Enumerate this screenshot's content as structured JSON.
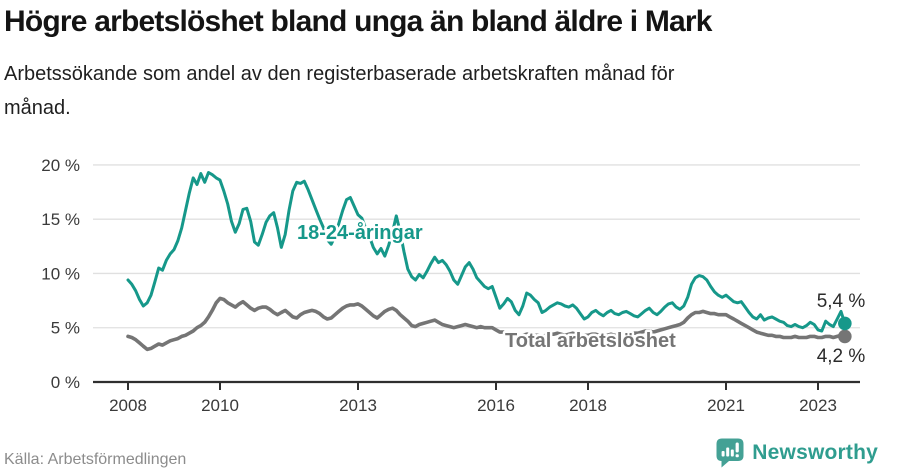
{
  "chart_data": {
    "type": "line",
    "title": "Högre arbetslöshet bland unga än bland äldre i Mark",
    "subtitle": "Arbetssökande som andel av den registerbaserade arbetskraften månad för\nmånad.",
    "source": "Källa: Arbetsförmedlingen",
    "x_unit": "month",
    "x_start": 2008.0,
    "x_end": 2023.583,
    "ylim": [
      0,
      21
    ],
    "grid": "horizontal",
    "legend_position": "inline-labels",
    "y_ticks": [
      {
        "value": 0,
        "label": "0 %"
      },
      {
        "value": 5,
        "label": "5 %"
      },
      {
        "value": 10,
        "label": "10 %"
      },
      {
        "value": 15,
        "label": "15 %"
      },
      {
        "value": 20,
        "label": "20 %"
      }
    ],
    "x_ticks": [
      {
        "value": 2008,
        "label": "2008"
      },
      {
        "value": 2010,
        "label": "2010"
      },
      {
        "value": 2013,
        "label": "2013"
      },
      {
        "value": 2016,
        "label": "2016"
      },
      {
        "value": 2018,
        "label": "2018"
      },
      {
        "value": 2021,
        "label": "2021"
      },
      {
        "value": 2023,
        "label": "2023"
      }
    ],
    "series": [
      {
        "name": "18-24-åringar",
        "color": "#16988a",
        "end_label": "5,4 %",
        "end_value": 5.4,
        "values": [
          9.4,
          9.0,
          8.4,
          7.6,
          7.0,
          7.3,
          8.0,
          9.2,
          10.5,
          10.3,
          11.2,
          11.8,
          12.2,
          13.0,
          14.2,
          15.8,
          17.4,
          18.8,
          18.2,
          19.2,
          18.4,
          19.3,
          19.1,
          18.8,
          18.6,
          17.6,
          16.4,
          14.8,
          13.8,
          14.6,
          15.9,
          16.0,
          14.8,
          12.9,
          12.6,
          13.6,
          14.7,
          15.3,
          15.6,
          14.2,
          12.4,
          13.6,
          15.8,
          17.6,
          18.4,
          18.3,
          18.5,
          17.7,
          16.8,
          15.9,
          15.0,
          14.2,
          13.1,
          12.7,
          13.4,
          14.6,
          15.8,
          16.8,
          17.0,
          16.2,
          15.4,
          15.1,
          14.2,
          13.4,
          12.4,
          11.8,
          12.3,
          11.6,
          12.6,
          13.8,
          15.3,
          13.8,
          12.0,
          10.4,
          9.7,
          9.4,
          9.9,
          9.6,
          10.2,
          10.9,
          11.5,
          11.0,
          11.2,
          10.8,
          10.2,
          9.4,
          9.0,
          9.8,
          10.6,
          11.0,
          10.4,
          9.6,
          9.2,
          8.8,
          8.6,
          8.8,
          7.8,
          6.8,
          7.2,
          7.7,
          7.4,
          6.6,
          6.2,
          7.0,
          8.2,
          8.0,
          7.6,
          7.3,
          6.4,
          6.6,
          6.9,
          7.1,
          7.3,
          7.2,
          7.0,
          6.9,
          7.1,
          6.8,
          6.3,
          5.8,
          6.0,
          6.4,
          6.6,
          6.3,
          6.1,
          6.4,
          6.6,
          6.3,
          6.2,
          6.4,
          6.5,
          6.3,
          6.1,
          6.0,
          6.3,
          6.6,
          6.8,
          6.4,
          6.2,
          6.5,
          6.9,
          7.2,
          7.3,
          6.9,
          6.7,
          7.0,
          7.8,
          9.0,
          9.6,
          9.8,
          9.7,
          9.4,
          8.8,
          8.3,
          8.0,
          7.8,
          8.0,
          7.7,
          7.4,
          7.3,
          7.4,
          6.9,
          6.4,
          6.0,
          5.8,
          6.2,
          5.7,
          5.9,
          6.0,
          5.8,
          5.6,
          5.5,
          5.2,
          5.1,
          5.3,
          5.1,
          5.0,
          5.2,
          5.5,
          5.3,
          4.8,
          4.7,
          5.6,
          5.3,
          5.1,
          5.8,
          6.5,
          5.4
        ]
      },
      {
        "name": "Total arbetslöshet",
        "color": "#757575",
        "end_label": "4,2 %",
        "end_value": 4.2,
        "values": [
          4.2,
          4.1,
          3.9,
          3.6,
          3.3,
          3.0,
          3.1,
          3.3,
          3.5,
          3.4,
          3.6,
          3.8,
          3.9,
          4.0,
          4.2,
          4.3,
          4.5,
          4.7,
          5.0,
          5.2,
          5.5,
          6.0,
          6.6,
          7.3,
          7.7,
          7.6,
          7.3,
          7.1,
          6.9,
          7.2,
          7.4,
          7.1,
          6.8,
          6.6,
          6.8,
          6.9,
          6.9,
          6.7,
          6.4,
          6.2,
          6.4,
          6.6,
          6.3,
          6.0,
          5.9,
          6.2,
          6.4,
          6.5,
          6.6,
          6.5,
          6.3,
          6.0,
          5.8,
          5.9,
          6.2,
          6.5,
          6.8,
          7.0,
          7.1,
          7.1,
          7.2,
          7.0,
          6.7,
          6.4,
          6.1,
          5.9,
          6.2,
          6.5,
          6.7,
          6.8,
          6.6,
          6.2,
          5.9,
          5.6,
          5.2,
          5.1,
          5.3,
          5.4,
          5.5,
          5.6,
          5.7,
          5.5,
          5.3,
          5.2,
          5.1,
          5.0,
          5.1,
          5.2,
          5.3,
          5.2,
          5.1,
          5.0,
          5.1,
          5.0,
          5.0,
          5.0,
          4.8,
          4.6,
          4.6,
          4.5,
          4.4,
          4.3,
          4.2,
          4.3,
          4.4,
          4.4,
          4.3,
          4.3,
          4.2,
          4.3,
          4.4,
          4.4,
          4.5,
          4.4,
          4.3,
          4.4,
          4.5,
          4.4,
          4.3,
          4.3,
          4.3,
          4.4,
          4.4,
          4.3,
          4.2,
          4.3,
          4.4,
          4.3,
          4.3,
          4.4,
          4.5,
          4.5,
          4.5,
          4.5,
          4.6,
          4.7,
          4.7,
          4.6,
          4.7,
          4.8,
          4.9,
          5.0,
          5.1,
          5.2,
          5.3,
          5.5,
          5.9,
          6.2,
          6.4,
          6.4,
          6.5,
          6.4,
          6.3,
          6.3,
          6.2,
          6.2,
          6.2,
          6.0,
          5.8,
          5.6,
          5.4,
          5.2,
          5.0,
          4.8,
          4.6,
          4.5,
          4.4,
          4.3,
          4.3,
          4.2,
          4.2,
          4.1,
          4.1,
          4.1,
          4.2,
          4.1,
          4.1,
          4.1,
          4.2,
          4.2,
          4.1,
          4.1,
          4.2,
          4.2,
          4.1,
          4.2,
          4.3,
          4.2
        ]
      }
    ]
  },
  "branding": {
    "name": "Newsworthy",
    "icon": "newsworthy-speech-bubble-bars-exclamation-icon",
    "icon_color": "#44a195",
    "text_color": "#2f9d8f"
  },
  "colors": {
    "youth_line": "#16988a",
    "total_line": "#757575",
    "gridline": "#e0e0e0",
    "axis": "#2f2f2f"
  }
}
